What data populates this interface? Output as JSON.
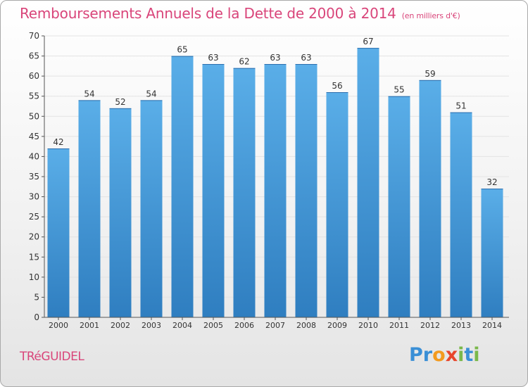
{
  "title": "Remboursements Annuels de la Dette de 2000 à 2014",
  "unit_note": "(en milliers d'€)",
  "commune": "TRéGUIDEL",
  "logo": {
    "text": "Proxiti",
    "letters": [
      {
        "ch": "P",
        "color": "#3a8fd6"
      },
      {
        "ch": "r",
        "color": "#3a8fd6"
      },
      {
        "ch": "o",
        "color": "#f39a1e"
      },
      {
        "ch": "x",
        "color": "#e8452c"
      },
      {
        "ch": "i",
        "color": "#7ab84a"
      },
      {
        "ch": "t",
        "color": "#3a8fd6"
      },
      {
        "ch": "i",
        "color": "#7ab84a"
      }
    ]
  },
  "colors": {
    "title": "#d9457a",
    "bar_top": "#5aaee8",
    "bar_bottom": "#2f7ec0",
    "axis": "#555555"
  },
  "chart_data": {
    "type": "bar",
    "categories": [
      "2000",
      "2001",
      "2002",
      "2003",
      "2004",
      "2005",
      "2006",
      "2007",
      "2008",
      "2009",
      "2010",
      "2011",
      "2012",
      "2013",
      "2014"
    ],
    "values": [
      42,
      54,
      52,
      54,
      65,
      63,
      62,
      63,
      63,
      56,
      67,
      55,
      59,
      51,
      32
    ],
    "ylim": [
      0,
      70
    ],
    "yticks": [
      0,
      5,
      10,
      15,
      20,
      25,
      30,
      35,
      40,
      45,
      50,
      55,
      60,
      65,
      70
    ],
    "grid": true
  }
}
